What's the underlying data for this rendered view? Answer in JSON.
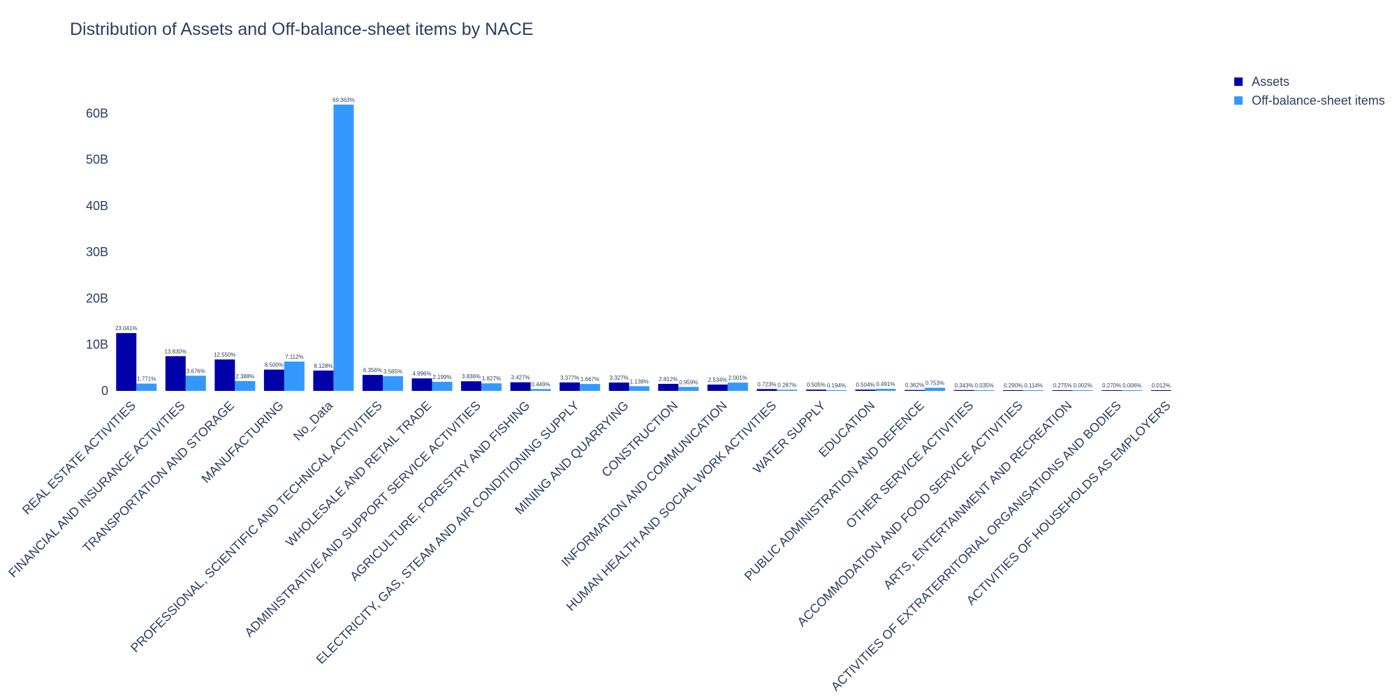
{
  "chart_data": {
    "type": "bar",
    "title": "Distribution of Assets and Off-balance-sheet items by NACE",
    "xlabel": "",
    "ylabel": "",
    "ylim": [
      0,
      66000000000
    ],
    "y_ticks": [
      0,
      10000000000,
      20000000000,
      30000000000,
      40000000000,
      50000000000,
      60000000000
    ],
    "y_tick_labels": [
      "0",
      "10B",
      "20B",
      "30B",
      "40B",
      "50B",
      "60B"
    ],
    "grid": false,
    "legend_position": "top-right",
    "categories": [
      "REAL ESTATE ACTIVITIES",
      "FINANCIAL AND INSURANCE ACTIVITIES",
      "TRANSPORTATION AND STORAGE",
      "MANUFACTURING",
      "No_Data",
      "PROFESSIONAL, SCIENTIFIC AND TECHNICAL ACTIVITIES",
      "WHOLESALE AND RETAIL TRADE",
      "ADMINISTRATIVE AND SUPPORT SERVICE ACTIVITIES",
      "AGRICULTURE, FORESTRY AND FISHING",
      "ELECTRICITY, GAS, STEAM AND AIR CONDITIONING SUPPLY",
      "MINING AND QUARRYING",
      "CONSTRUCTION",
      "INFORMATION AND COMMUNICATION",
      "HUMAN HEALTH AND SOCIAL WORK ACTIVITIES",
      "WATER SUPPLY",
      "EDUCATION",
      "PUBLIC ADMINISTRATION AND DEFENCE",
      "OTHER SERVICE ACTIVITIES",
      "ACCOMMODATION AND FOOD SERVICE ACTIVITIES",
      "ARTS, ENTERTAINMENT AND RECREATION",
      "ACTIVITIES OF EXTRATERRITORIAL ORGANISATIONS AND BODIES",
      "ACTIVITIES OF HOUSEHOLDS AS EMPLOYERS"
    ],
    "series": [
      {
        "name": "Assets",
        "color": "#0000a8",
        "values": [
          12500000000,
          7500000000,
          6800000000,
          4600000000,
          4400000000,
          3450000000,
          2700000000,
          2080000000,
          1860000000,
          1830000000,
          1800000000,
          1520000000,
          1370000000,
          392000000,
          274000000,
          273000000,
          196000000,
          186000000,
          157000000,
          149000000,
          146000000,
          6500000
        ],
        "labels": [
          "23.041%",
          "13.830%",
          "12.550%",
          "8.500%",
          "8.128%",
          "6.356%",
          "4.996%",
          "3.836%",
          "3.427%",
          "3.377%",
          "3.327%",
          "2.812%",
          "2.534%",
          "0.723%",
          "0.505%",
          "0.504%",
          "0.362%",
          "0.343%",
          "0.290%",
          "0.275%",
          "0.270%",
          "0.012%"
        ]
      },
      {
        "name": "Off-balance-sheet items",
        "color": "#3399ff",
        "values": [
          1580000000,
          3280000000,
          2130000000,
          6340000000,
          61900000000,
          3180000000,
          1960000000,
          1630000000,
          400000000,
          1490000000,
          1010000000,
          855000000,
          1790000000,
          256000000,
          173000000,
          438000000,
          672000000,
          31000000,
          102000000,
          1800000,
          5400000,
          0
        ],
        "labels": [
          "1.771%",
          "3.676%",
          "2.388%",
          "7.112%",
          "69.363%",
          "3.565%",
          "2.199%",
          "1.827%",
          "0.449%",
          "1.667%",
          "1.138%",
          "0.959%",
          "2.001%",
          "0.287%",
          "0.194%",
          "0.491%",
          "0.753%",
          "0.035%",
          "0.114%",
          "0.002%",
          "0.006%",
          ""
        ]
      }
    ]
  }
}
